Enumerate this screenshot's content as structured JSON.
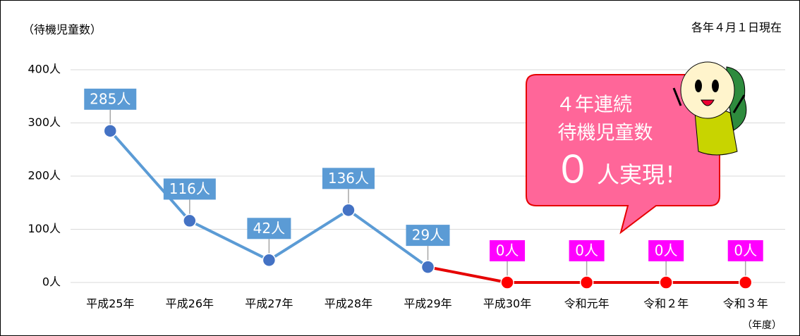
{
  "chart_data": {
    "type": "line",
    "y_axis_title": "（待機児童数）",
    "note": "各年４月１日現在",
    "x_axis_unit": "（年度）",
    "categories": [
      "平成25年",
      "平成26年",
      "平成27年",
      "平成28年",
      "平成29年",
      "平成30年",
      "令和元年",
      "令和２年",
      "令和３年"
    ],
    "values": [
      285,
      116,
      42,
      136,
      29,
      0,
      0,
      0,
      0
    ],
    "value_labels": [
      "285人",
      "116人",
      "42人",
      "136人",
      "29人",
      "0人",
      "0人",
      "0人",
      "0人"
    ],
    "marker_colors": [
      "#4472c4",
      "#4472c4",
      "#4472c4",
      "#4472c4",
      "#4472c4",
      "#ff0000",
      "#ff0000",
      "#ff0000",
      "#ff0000"
    ],
    "line_colors": [
      "#5b9bd5",
      "#5b9bd5",
      "#5b9bd5",
      "#5b9bd5",
      "#5b9bd5",
      "#e60000",
      "#e60000",
      "#e60000",
      "#e60000"
    ],
    "label_colors": [
      "#5b9bd5",
      "#5b9bd5",
      "#5b9bd5",
      "#5b9bd5",
      "#5b9bd5",
      "#ff00ff",
      "#ff00ff",
      "#ff00ff",
      "#ff00ff"
    ],
    "ylim": [
      0,
      400
    ],
    "yticks": [
      {
        "value": 0,
        "label": "0人"
      },
      {
        "value": 100,
        "label": "100人"
      },
      {
        "value": 200,
        "label": "200人"
      },
      {
        "value": 300,
        "label": "300人"
      },
      {
        "value": 400,
        "label": "400人"
      }
    ],
    "grid": true,
    "callout": {
      "lines": [
        "４年連続",
        "待機児童数"
      ],
      "big": "０",
      "rest": "人実現！"
    }
  }
}
